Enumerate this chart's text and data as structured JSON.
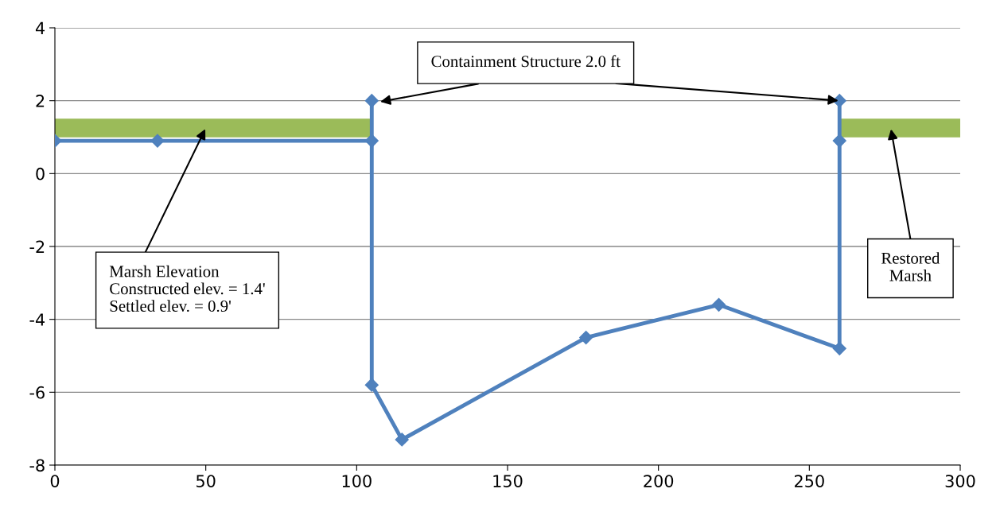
{
  "chart_data": {
    "type": "line",
    "series": [
      {
        "type": "line",
        "x": [
          0,
          105
        ],
        "values": [
          1.25,
          1.25
        ],
        "color": "#9bbb59",
        "marker": "none"
      },
      {
        "type": "line",
        "x": [
          260,
          300
        ],
        "values": [
          1.25,
          1.25
        ],
        "color": "#9bbb59",
        "marker": "none"
      },
      {
        "x": [
          0,
          34,
          105,
          105,
          105,
          115,
          176,
          220,
          260,
          260,
          260
        ],
        "values": [
          0.9,
          0.9,
          0.9,
          2.0,
          -5.8,
          -7.3,
          -4.5,
          -3.6,
          -4.8,
          2.0,
          0.9
        ],
        "color": "#4f81bd",
        "marker": "diamond",
        "line_style": "solid"
      }
    ],
    "xlim": [
      0,
      300
    ],
    "xticks": [
      0,
      50,
      100,
      150,
      200,
      250,
      300
    ],
    "ylim": [
      -8,
      4
    ],
    "yticks": [
      -8,
      -6,
      -4,
      -2,
      0,
      2,
      4
    ],
    "grid": "y",
    "legend": false,
    "annotations": [
      {
        "text": "Containment Structure 2.0 ft",
        "x": 260,
        "y": 2.0
      },
      {
        "text": "Marsh Elevation\nConstructed elev. = 1.4'\nSettled elev. = 0.9'",
        "x": 50,
        "y": 1.25
      },
      {
        "text": "Restored\nMarsh",
        "x": 277,
        "y": 1.25
      }
    ]
  }
}
